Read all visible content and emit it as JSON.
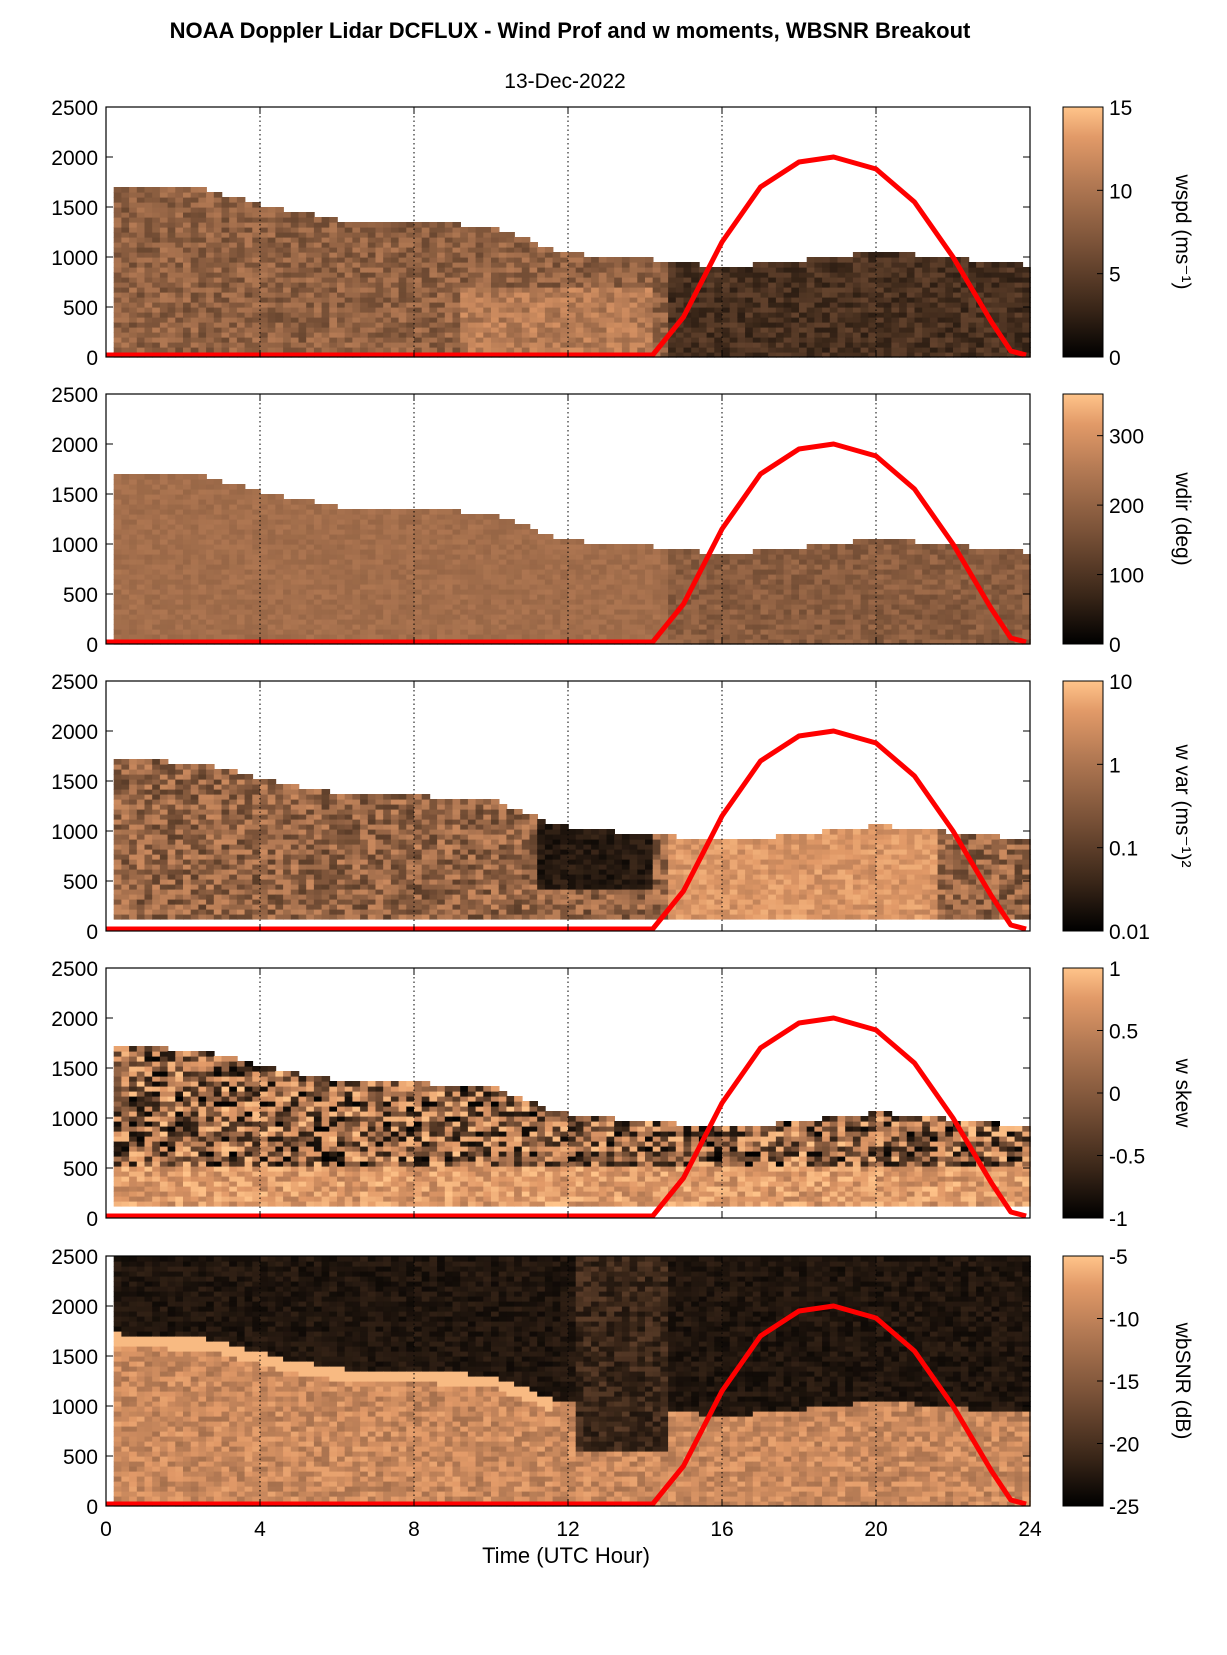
{
  "figure": {
    "title": "NOAA Doppler Lidar DCFLUX - Wind Prof and w moments, WBSNR Breakout",
    "date": "13-Dec-2022",
    "xlabel": "Time (UTC Hour)"
  },
  "chart_data": [
    {
      "type": "heatmap",
      "variable": "wspd",
      "colorbar_label": "wspd (ms⁻¹)",
      "xlim": [
        0,
        24
      ],
      "ylim": [
        0,
        2500
      ],
      "x_ticks": [
        0,
        4,
        8,
        12,
        16,
        20,
        24
      ],
      "y_ticks": [
        0,
        500,
        1000,
        1500,
        2000,
        2500
      ],
      "color_range": [
        0,
        15
      ],
      "color_ticks": [
        0,
        5,
        10,
        15
      ],
      "color_tick_labels": [
        "0",
        "5",
        "10",
        "15"
      ],
      "grid": "vertical dotted at x ticks",
      "top_of_data_height_m": [
        {
          "x": 0.2,
          "y": 1700
        },
        {
          "x": 2.5,
          "y": 1650
        },
        {
          "x": 4.5,
          "y": 1450
        },
        {
          "x": 6,
          "y": 1350
        },
        {
          "x": 8,
          "y": 1330
        },
        {
          "x": 10,
          "y": 1280
        },
        {
          "x": 11.5,
          "y": 1050
        },
        {
          "x": 12.5,
          "y": 980
        },
        {
          "x": 14,
          "y": 950
        },
        {
          "x": 16,
          "y": 870
        },
        {
          "x": 18,
          "y": 950
        },
        {
          "x": 20,
          "y": 1030
        },
        {
          "x": 21.5,
          "y": 980
        },
        {
          "x": 23.7,
          "y": 900
        }
      ]
    },
    {
      "type": "heatmap",
      "variable": "wdir",
      "colorbar_label": "wdir (deg)",
      "xlim": [
        0,
        24
      ],
      "ylim": [
        0,
        2500
      ],
      "color_range": [
        0,
        360
      ],
      "color_ticks": [
        0,
        100,
        200,
        300
      ],
      "color_tick_labels": [
        "0",
        "100",
        "200",
        "300"
      ],
      "grid": "vertical dotted at x ticks"
    },
    {
      "type": "heatmap",
      "variable": "w var",
      "colorbar_label": "w var (ms⁻¹)²",
      "xlim": [
        0,
        24
      ],
      "ylim": [
        0,
        2500
      ],
      "color_scale": "log",
      "color_range": [
        0.01,
        10
      ],
      "color_ticks": [
        0.01,
        0.1,
        1,
        10
      ],
      "color_tick_labels": [
        "0.01",
        "0.1",
        "1",
        "10"
      ],
      "grid": "vertical dotted at x ticks"
    },
    {
      "type": "heatmap",
      "variable": "w skew",
      "colorbar_label": "w skew",
      "xlim": [
        0,
        24
      ],
      "ylim": [
        0,
        2500
      ],
      "color_range": [
        -1,
        1
      ],
      "color_ticks": [
        -1,
        -0.5,
        0,
        0.5,
        1
      ],
      "color_tick_labels": [
        "-1",
        "-0.5",
        "0",
        "0.5",
        "1"
      ],
      "grid": "vertical dotted at x ticks"
    },
    {
      "type": "heatmap",
      "variable": "wbSNR",
      "colorbar_label": "wbSNR (dB)",
      "xlim": [
        0,
        24
      ],
      "ylim": [
        0,
        2500
      ],
      "color_range": [
        -25,
        -5
      ],
      "color_ticks": [
        -25,
        -20,
        -15,
        -10,
        -5
      ],
      "color_tick_labels": [
        "-25",
        "-20",
        "-15",
        "-10",
        "-5"
      ],
      "grid": "vertical dotted at x ticks"
    }
  ],
  "overlay_curve": {
    "color": "#ff0000",
    "points": [
      {
        "x": 0,
        "y": 20
      },
      {
        "x": 14.2,
        "y": 20
      },
      {
        "x": 15,
        "y": 400
      },
      {
        "x": 16,
        "y": 1150
      },
      {
        "x": 17,
        "y": 1700
      },
      {
        "x": 18,
        "y": 1950
      },
      {
        "x": 18.9,
        "y": 2000
      },
      {
        "x": 20,
        "y": 1880
      },
      {
        "x": 21,
        "y": 1550
      },
      {
        "x": 22,
        "y": 1000
      },
      {
        "x": 23,
        "y": 350
      },
      {
        "x": 23.5,
        "y": 60
      },
      {
        "x": 23.9,
        "y": 20
      }
    ]
  },
  "colormap": [
    "#000000",
    "#3b2719",
    "#7a5238",
    "#b47a54",
    "#e29a68",
    "#ffc48a"
  ]
}
